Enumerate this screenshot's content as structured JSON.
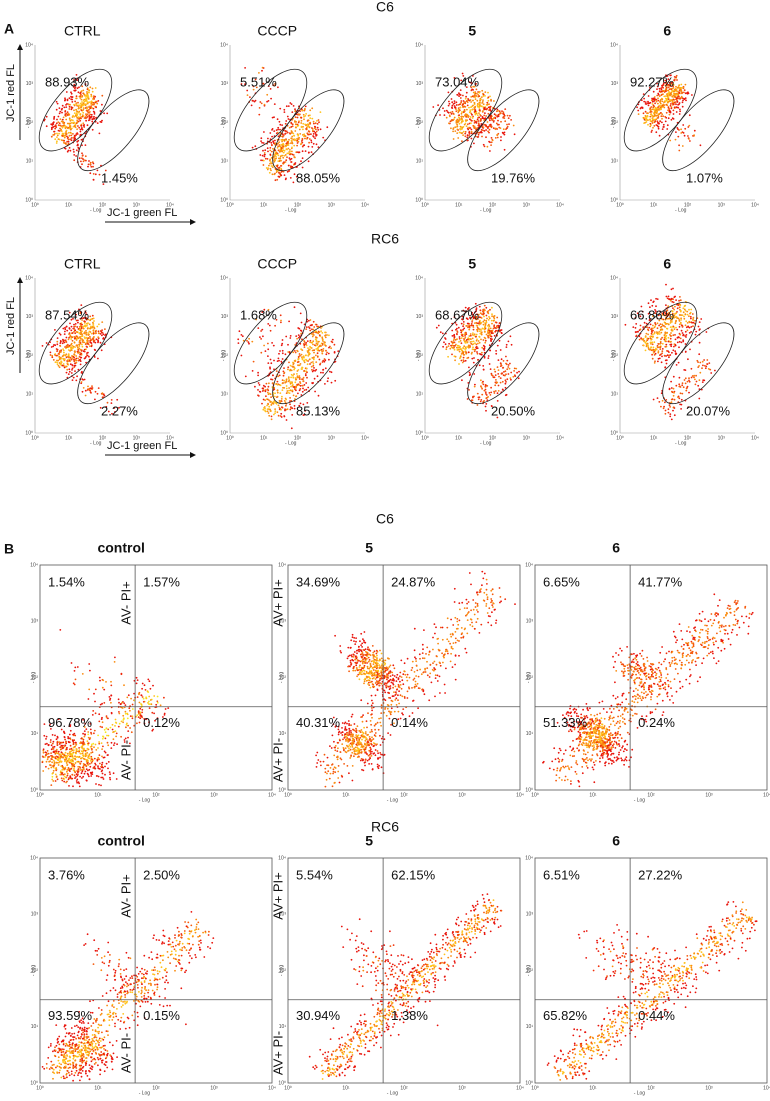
{
  "panel_a": {
    "letter": "A",
    "ticks": [
      "10⁰",
      "10¹",
      "10²",
      "10³",
      "10⁴"
    ],
    "unit": "- Log",
    "rows": [
      {
        "title": "C6",
        "y_label": "JC-1 red FL",
        "x_label": "JC-1 green FL",
        "plots": [
          {
            "title": "CTRL",
            "high": "88.93%",
            "low": "1.45%"
          },
          {
            "title": "CCCP",
            "high": "5.51%",
            "low": "88.05%"
          },
          {
            "title": "5",
            "high": "73.04%",
            "low": "19.76%"
          },
          {
            "title": "6",
            "high": "92.27%",
            "low": "1.07%"
          }
        ]
      },
      {
        "title": "RC6",
        "y_label": "JC-1 red FL",
        "x_label": "JC-1 green FL",
        "plots": [
          {
            "title": "CTRL",
            "high": "87.54%",
            "low": "2.27%"
          },
          {
            "title": "CCCP",
            "high": "1.68%",
            "low": "85.13%"
          },
          {
            "title": "5",
            "high": "68.67%",
            "low": "20.50%"
          },
          {
            "title": "6",
            "high": "66.86%",
            "low": "20.07%"
          }
        ]
      }
    ]
  },
  "panel_b": {
    "letter": "B",
    "ticks": [
      "10⁰",
      "10¹",
      "10²",
      "10³",
      "10⁴"
    ],
    "unit": "- Log",
    "rows": [
      {
        "title": "C6",
        "plots": [
          {
            "title": "control",
            "upper_left": "1.54%",
            "upper_right": "1.57%",
            "lower_left": "96.78%",
            "lower_right": "0.12%",
            "side_upper": "AV- PI+",
            "side_lower": "AV- PI-"
          },
          {
            "title": "5",
            "upper_left": "34.69%",
            "upper_right": "24.87%",
            "lower_left": "40.31%",
            "lower_right": "0.14%",
            "side_upper": "AV+ PI+",
            "side_lower": "AV+ PI-"
          },
          {
            "title": "6",
            "upper_left": "6.65%",
            "upper_right": "41.77%",
            "lower_left": "51.33%",
            "lower_right": "0.24%"
          }
        ]
      },
      {
        "title": "RC6",
        "plots": [
          {
            "title": "control",
            "upper_left": "3.76%",
            "upper_right": "2.50%",
            "lower_left": "93.59%",
            "lower_right": "0.15%",
            "side_upper": "AV- PI+",
            "side_lower": "AV- PI-"
          },
          {
            "title": "5",
            "upper_left": "5.54%",
            "upper_right": "62.15%",
            "lower_left": "30.94%",
            "lower_right": "1.38%",
            "side_upper": "AV+ PI+",
            "side_lower": "AV+ PI-"
          },
          {
            "title": "6",
            "upper_left": "6.51%",
            "upper_right": "27.22%",
            "lower_left": "65.82%",
            "lower_right": "0.44%"
          }
        ]
      }
    ]
  }
}
